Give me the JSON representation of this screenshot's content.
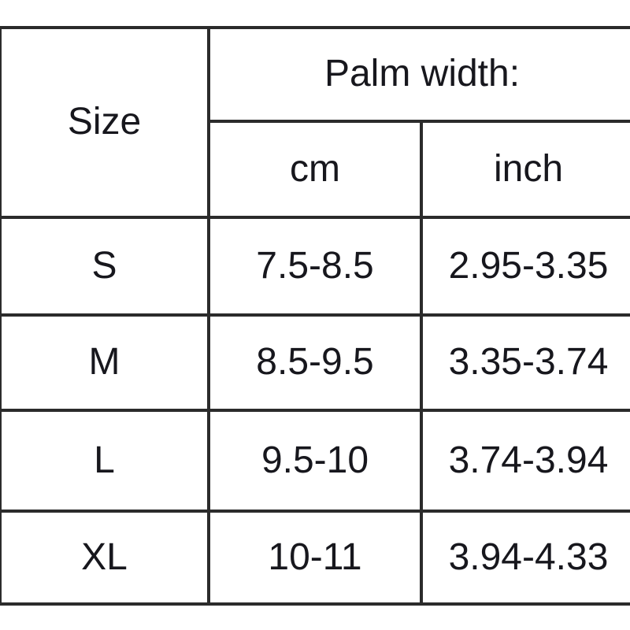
{
  "chart_data": {
    "type": "table",
    "title": "Palm width:",
    "corner_header": "Size",
    "group_header": "Palm width:",
    "unit_headers": [
      "cm",
      "inch"
    ],
    "columns": [
      "Size",
      "cm",
      "inch"
    ],
    "rows": [
      [
        "S",
        "7.5-8.5",
        "2.95-3.35"
      ],
      [
        "M",
        "8.5-9.5",
        "3.35-3.74"
      ],
      [
        "L",
        "9.5-10",
        "3.74-3.94"
      ],
      [
        "XL",
        "10-11",
        "3.94-4.33"
      ]
    ]
  },
  "colors": {
    "text": "#17171d",
    "border": "#2b2b2b",
    "background": "#ffffff"
  }
}
